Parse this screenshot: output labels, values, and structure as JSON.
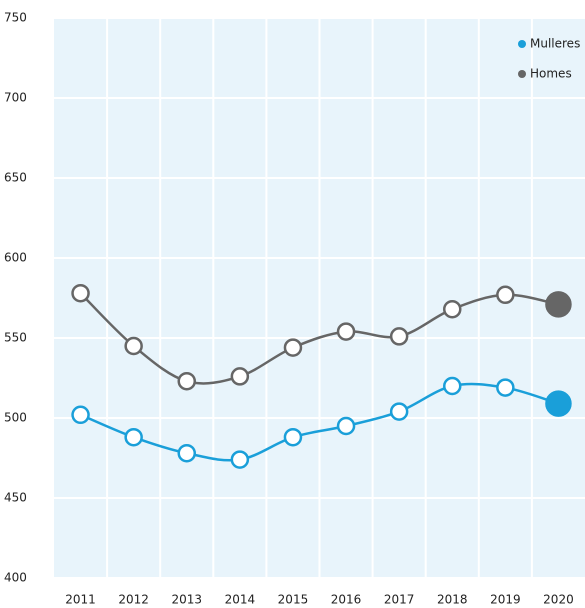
{
  "chart_data": {
    "type": "line",
    "categories": [
      "2011",
      "2012",
      "2013",
      "2014",
      "2015",
      "2016",
      "2017",
      "2018",
      "2019",
      "2020"
    ],
    "series": [
      {
        "name": "Mulleres",
        "color": "#1a9fd9",
        "values": [
          502,
          488,
          478,
          474,
          488,
          495,
          504,
          520,
          519,
          509
        ]
      },
      {
        "name": "Homes",
        "color": "#666666",
        "values": [
          578,
          545,
          523,
          526,
          544,
          554,
          551,
          568,
          577,
          571
        ]
      }
    ],
    "ylim": [
      400,
      750
    ],
    "yticks": [
      400,
      450,
      500,
      550,
      600,
      650,
      700,
      750
    ],
    "grid": true,
    "legend": "top-right"
  }
}
